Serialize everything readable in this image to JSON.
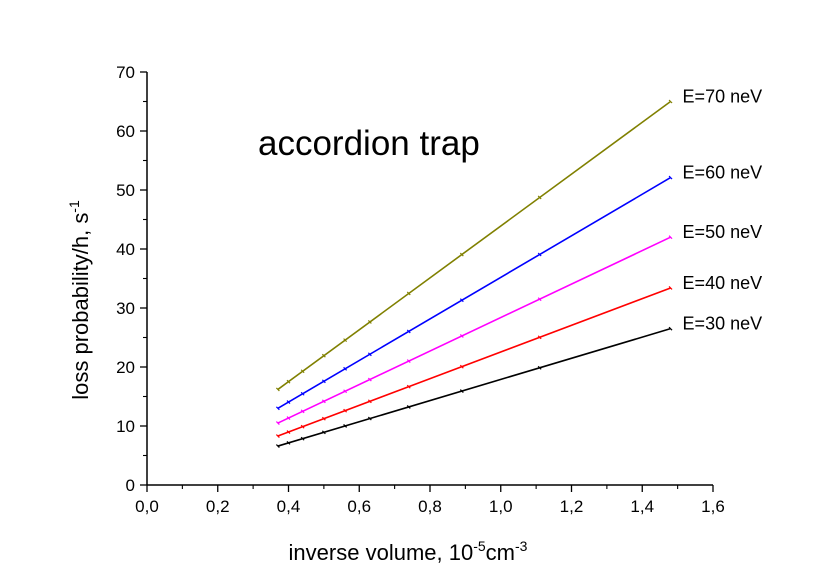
{
  "chart_data": {
    "type": "line",
    "title": "accordion trap",
    "xlabel": {
      "main": "inverse volume, 10",
      "exp1": "-5",
      "unit": "cm",
      "exp2": "-3"
    },
    "ylabel": {
      "main": "loss probability/h, s",
      "exp": "-1"
    },
    "xlim": [
      0,
      1.6
    ],
    "ylim": [
      0,
      70
    ],
    "x_ticks": [
      0,
      0.2,
      0.4,
      0.6,
      0.8,
      1.0,
      1.2,
      1.4,
      1.6
    ],
    "x_tick_labels": [
      "0,0",
      "0,2",
      "0,4",
      "0,6",
      "0,8",
      "1,0",
      "1,2",
      "1,4",
      "1,6"
    ],
    "y_ticks": [
      0,
      10,
      20,
      30,
      40,
      50,
      60,
      70
    ],
    "y_tick_labels": [
      "0",
      "10",
      "20",
      "30",
      "40",
      "50",
      "60",
      "70"
    ],
    "grid": false,
    "x": [
      0.37,
      1.48
    ],
    "series": [
      {
        "name": "E=70 neV",
        "color": "#808000",
        "values": [
          16.2,
          65.0
        ]
      },
      {
        "name": "E=60 neV",
        "color": "#0000ff",
        "values": [
          13.0,
          52.1
        ]
      },
      {
        "name": "E=50 neV",
        "color": "#ff00ff",
        "values": [
          10.5,
          42.0
        ]
      },
      {
        "name": "E=40 neV",
        "color": "#ff0000",
        "values": [
          8.3,
          33.4
        ]
      },
      {
        "name": "E=30 neV",
        "color": "#000000",
        "values": [
          6.6,
          26.5
        ]
      }
    ]
  }
}
